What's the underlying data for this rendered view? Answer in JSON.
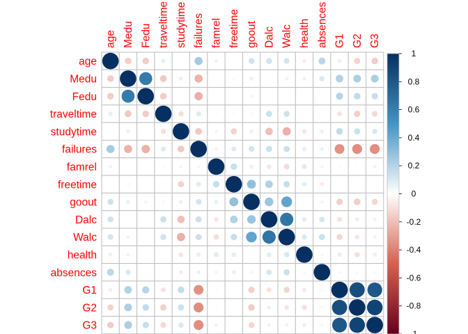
{
  "chart_data": {
    "type": "heatmap",
    "title": "",
    "variables": [
      "age",
      "Medu",
      "Fedu",
      "traveltime",
      "studytime",
      "failures",
      "famrel",
      "freetime",
      "goout",
      "Dalc",
      "Walc",
      "health",
      "absences",
      "G1",
      "G2",
      "G3"
    ],
    "matrix": [
      [
        1.0,
        -0.16,
        -0.16,
        0.07,
        0.0,
        0.24,
        0.05,
        0.0,
        0.13,
        0.13,
        0.12,
        -0.06,
        0.18,
        -0.06,
        -0.14,
        -0.16
      ],
      [
        -0.16,
        1.0,
        0.62,
        -0.17,
        0.06,
        -0.24,
        0.0,
        0.03,
        0.06,
        0.01,
        -0.05,
        -0.05,
        0.1,
        0.21,
        0.22,
        0.22
      ],
      [
        -0.16,
        0.62,
        1.0,
        -0.16,
        0.01,
        -0.25,
        0.0,
        -0.01,
        0.04,
        0.0,
        -0.01,
        0.01,
        0.02,
        0.19,
        0.16,
        0.15
      ],
      [
        0.07,
        -0.17,
        -0.16,
        1.0,
        -0.1,
        0.09,
        -0.02,
        -0.02,
        0.03,
        0.14,
        0.13,
        0.01,
        -0.01,
        -0.09,
        -0.15,
        -0.12
      ],
      [
        0.0,
        0.06,
        0.01,
        -0.1,
        1.0,
        -0.17,
        0.04,
        -0.14,
        -0.06,
        -0.2,
        -0.25,
        -0.08,
        -0.06,
        0.16,
        0.14,
        0.1
      ],
      [
        0.24,
        -0.24,
        -0.25,
        0.09,
        -0.17,
        1.0,
        -0.04,
        0.09,
        0.12,
        0.14,
        0.14,
        0.07,
        0.06,
        -0.35,
        -0.36,
        -0.36
      ],
      [
        0.05,
        0.0,
        0.0,
        -0.02,
        0.04,
        -0.04,
        1.0,
        0.15,
        0.06,
        -0.08,
        -0.11,
        0.09,
        -0.04,
        0.02,
        -0.02,
        0.05
      ],
      [
        0.0,
        0.03,
        -0.01,
        -0.02,
        -0.14,
        0.09,
        0.15,
        1.0,
        0.29,
        0.21,
        0.15,
        0.08,
        -0.06,
        0.01,
        -0.01,
        0.01
      ],
      [
        0.13,
        0.06,
        0.04,
        0.03,
        -0.06,
        0.12,
        0.06,
        0.29,
        1.0,
        0.27,
        0.42,
        -0.01,
        0.04,
        -0.15,
        -0.16,
        -0.13
      ],
      [
        0.13,
        0.01,
        0.0,
        0.14,
        -0.2,
        0.14,
        -0.08,
        0.21,
        0.27,
        1.0,
        0.65,
        0.08,
        0.11,
        -0.09,
        -0.06,
        -0.05
      ],
      [
        0.12,
        -0.05,
        -0.01,
        0.13,
        -0.25,
        0.14,
        -0.11,
        0.15,
        0.42,
        0.65,
        1.0,
        0.1,
        0.14,
        -0.13,
        -0.08,
        -0.05
      ],
      [
        -0.06,
        -0.05,
        0.01,
        0.01,
        -0.08,
        0.07,
        0.09,
        0.08,
        -0.01,
        0.08,
        0.1,
        1.0,
        -0.03,
        -0.07,
        -0.1,
        -0.06
      ],
      [
        0.18,
        0.1,
        0.02,
        -0.01,
        -0.06,
        0.06,
        -0.04,
        -0.06,
        0.04,
        0.11,
        0.14,
        -0.03,
        1.0,
        -0.03,
        -0.03,
        0.03
      ],
      [
        -0.06,
        0.21,
        0.19,
        -0.09,
        0.16,
        -0.35,
        0.02,
        0.01,
        -0.15,
        -0.09,
        -0.13,
        -0.07,
        -0.03,
        1.0,
        0.85,
        0.8
      ],
      [
        -0.14,
        0.22,
        0.16,
        -0.15,
        0.14,
        -0.36,
        -0.02,
        -0.01,
        -0.16,
        -0.06,
        -0.08,
        -0.1,
        -0.03,
        0.85,
        1.0,
        0.9
      ],
      [
        -0.16,
        0.22,
        0.15,
        -0.12,
        0.1,
        -0.36,
        0.05,
        0.01,
        -0.13,
        -0.05,
        -0.05,
        -0.06,
        0.03,
        0.8,
        0.9,
        1.0
      ]
    ],
    "colorbar": {
      "range": [
        -1,
        1
      ],
      "ticks": [
        "1",
        "0.8",
        "0.6",
        "0.4",
        "0.2",
        "0",
        "-0.2",
        "-0.4",
        "-0.6",
        "-0.8",
        "-1"
      ]
    },
    "colors": {
      "negative_end": "#67001f",
      "negative_mid": "#d6604d",
      "neutral": "#ffffff",
      "positive_mid": "#4393c3",
      "positive_end": "#053061",
      "label_color": "#ff0000",
      "grid_color": "#bebebe"
    },
    "grid": true,
    "legend": "right"
  }
}
